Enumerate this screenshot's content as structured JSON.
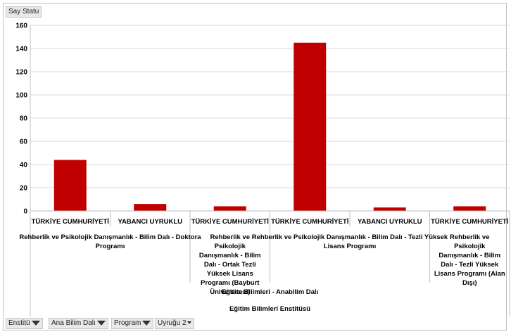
{
  "value_button": {
    "label": "Say Statu"
  },
  "filter_buttons": [
    {
      "label": "Enstitü",
      "icon": "filter-icon"
    },
    {
      "label": "Ana Bilim  Dalı",
      "icon": "filter-icon"
    },
    {
      "label": "Program",
      "icon": "filter-icon"
    },
    {
      "label": "Uyruğu 2",
      "icon": "chevron-down-icon"
    }
  ],
  "chart_data": {
    "type": "bar",
    "color": "#c00000",
    "ylim": [
      0,
      160
    ],
    "yticks": [
      0,
      20,
      40,
      60,
      80,
      100,
      120,
      140,
      160
    ],
    "grid": true,
    "categories": [
      "TÜRKİYE CUMHURİYETİ",
      "YABANCI UYRUKLU",
      "TÜRKİYE CUMHURİYETİ",
      "TÜRKİYE CUMHURİYETİ",
      "YABANCI UYRUKLU",
      "TÜRKİYE CUMHURİYETİ"
    ],
    "values": [
      44,
      6,
      4,
      145,
      3,
      4
    ],
    "programs": [
      "Rehberlik ve Psikolojik Danışmanlık - Bilim Dalı - Doktora Programı",
      "Rehberlik ve Psikolojik Danışmanlık - Bilim Dalı - Ortak Tezli Yüksek Lisans Programı (Bayburt Üniversitesi)",
      "Rehberlik ve Psikolojik Danışmanlık - Bilim Dalı - Tezli Yüksek Lisans Programı",
      "Rehberlik ve Psikolojik Danışmanlık - Bilim Dalı - Tezli Yüksek Lisans Programı (Alan Dışı)"
    ],
    "department": "Eğitim Bilimleri - Anabilim Dalı",
    "institute": "Eğitim Bilimleri Enstitüsü"
  }
}
